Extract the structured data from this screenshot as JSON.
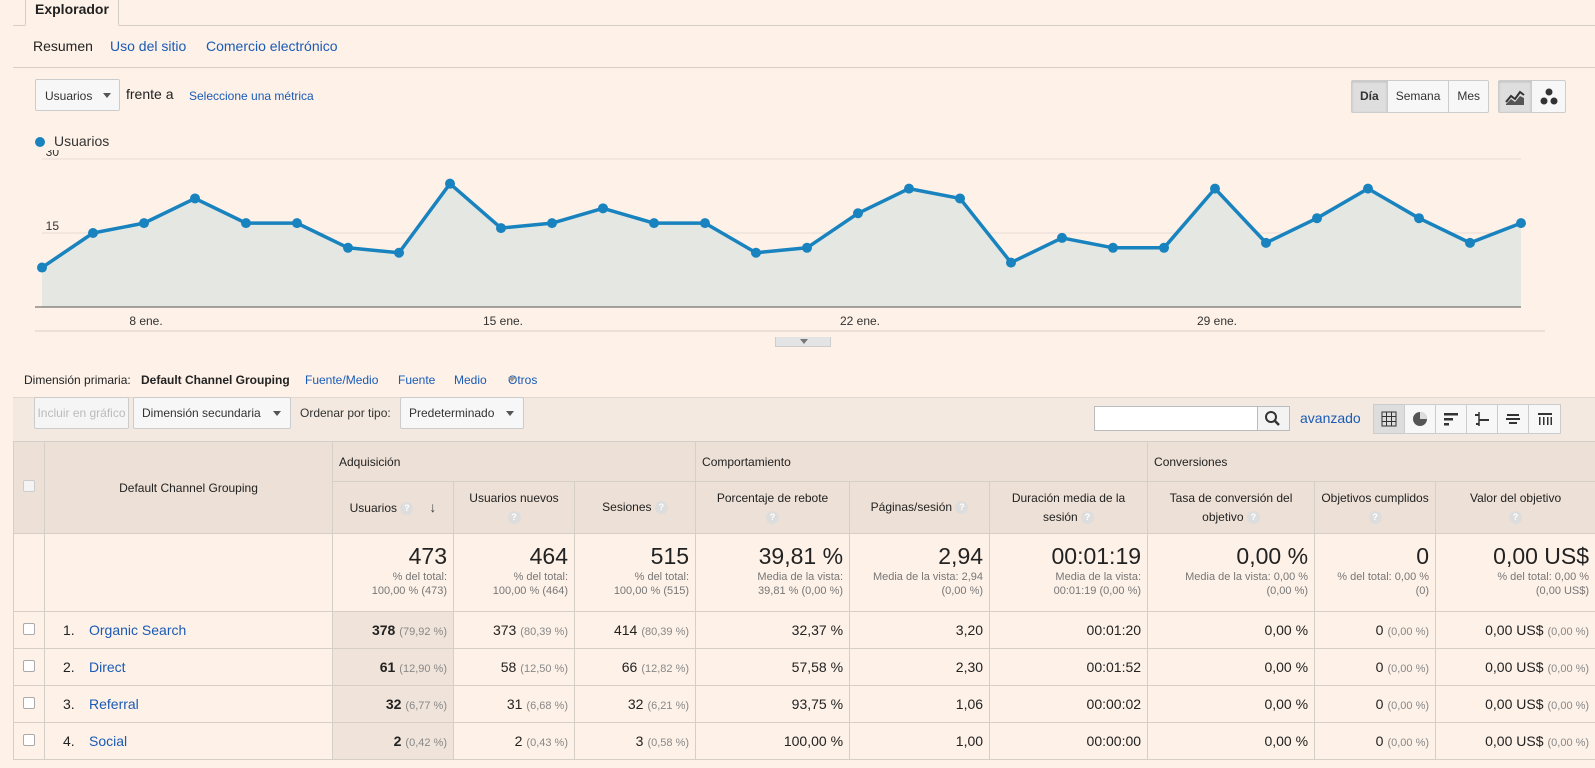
{
  "tabs": {
    "explorer": "Explorador"
  },
  "subtabs": [
    "Resumen",
    "Uso del sitio",
    "Comercio electrónico"
  ],
  "metric": {
    "selected": "Usuarios",
    "vs": "frente a",
    "select_metric": "Seleccione una métrica"
  },
  "period_buttons": [
    "Día",
    "Semana",
    "Mes"
  ],
  "chart_type_icons": [
    "line-chart-icon",
    "motion-chart-icon"
  ],
  "chart_data": {
    "type": "area",
    "series": [
      {
        "name": "Usuarios",
        "color": "#1883be",
        "values": [
          8,
          15,
          17,
          22,
          17,
          17,
          12,
          11,
          25,
          16,
          17,
          20,
          17,
          17,
          11,
          12,
          19,
          24,
          22,
          9,
          14,
          12,
          12,
          24,
          13,
          18,
          24,
          18,
          13,
          17
        ]
      }
    ],
    "x_ticks": [
      {
        "index": 2,
        "label": "8 ene."
      },
      {
        "index": 9,
        "label": "15 ene."
      },
      {
        "index": 16,
        "label": "22 ene."
      },
      {
        "index": 23,
        "label": "29 ene."
      }
    ],
    "y_ticks": [
      15,
      30
    ],
    "ylim": [
      0,
      30
    ],
    "legend": "top-left",
    "grid": true
  },
  "dimension": {
    "label": "Dimensión primaria:",
    "active": "Default Channel Grouping",
    "options": [
      "Fuente/Medio",
      "Fuente",
      "Medio",
      "Otros"
    ]
  },
  "toolbar": {
    "plot": "Incluir en gráfico",
    "secondary": "Dimensión secundaria",
    "sort_label": "Ordenar por tipo:",
    "sort_value": "Predeterminado",
    "advanced": "avanzado",
    "search_value": ""
  },
  "table": {
    "dim_header": "Default Channel Grouping",
    "groups": [
      "Adquisición",
      "Comportamiento",
      "Conversiones"
    ],
    "columns": [
      "Usuarios",
      "Usuarios nuevos",
      "Sesiones",
      "Porcentaje de rebote",
      "Páginas/sesión",
      "Duración media de la sesión",
      "Tasa de conversión del objetivo",
      "Objetivos cumplidos",
      "Valor del objetivo"
    ],
    "totals": [
      {
        "big": "473",
        "small1": "% del total:",
        "small2": "100,00 % (473)"
      },
      {
        "big": "464",
        "small1": "% del total:",
        "small2": "100,00 % (464)"
      },
      {
        "big": "515",
        "small1": "% del total:",
        "small2": "100,00 % (515)"
      },
      {
        "big": "39,81 %",
        "small1": "Media de la vista:",
        "small2": "39,81 % (0,00 %)"
      },
      {
        "big": "2,94",
        "small1": "Media de la vista: 2,94",
        "small2": "(0,00 %)"
      },
      {
        "big": "00:01:19",
        "small1": "Media de la vista:",
        "small2": "00:01:19 (0,00 %)"
      },
      {
        "big": "0,00 %",
        "small1": "Media de la vista: 0,00 %",
        "small2": "(0,00 %)"
      },
      {
        "big": "0",
        "small1": "% del total: 0,00 %",
        "small2": "(0)"
      },
      {
        "big": "0,00 US$",
        "small1": "% del total: 0,00 %",
        "small2": "(0,00 US$)"
      }
    ],
    "rows": [
      {
        "rank": "1.",
        "channel": "Organic Search",
        "users": "378",
        "users_pct": "(79,92 %)",
        "new_users": "373",
        "new_users_pct": "(80,39 %)",
        "sessions": "414",
        "sessions_pct": "(80,39 %)",
        "bounce": "32,37 %",
        "pages": "3,20",
        "duration": "00:01:20",
        "conv_rate": "0,00 %",
        "goals": "0",
        "goals_pct": "(0,00 %)",
        "value": "0,00 US$",
        "value_pct": "(0,00 %)"
      },
      {
        "rank": "2.",
        "channel": "Direct",
        "users": "61",
        "users_pct": "(12,90 %)",
        "new_users": "58",
        "new_users_pct": "(12,50 %)",
        "sessions": "66",
        "sessions_pct": "(12,82 %)",
        "bounce": "57,58 %",
        "pages": "2,30",
        "duration": "00:01:52",
        "conv_rate": "0,00 %",
        "goals": "0",
        "goals_pct": "(0,00 %)",
        "value": "0,00 US$",
        "value_pct": "(0,00 %)"
      },
      {
        "rank": "3.",
        "channel": "Referral",
        "users": "32",
        "users_pct": "(6,77 %)",
        "new_users": "31",
        "new_users_pct": "(6,68 %)",
        "sessions": "32",
        "sessions_pct": "(6,21 %)",
        "bounce": "93,75 %",
        "pages": "1,06",
        "duration": "00:00:02",
        "conv_rate": "0,00 %",
        "goals": "0",
        "goals_pct": "(0,00 %)",
        "value": "0,00 US$",
        "value_pct": "(0,00 %)"
      },
      {
        "rank": "4.",
        "channel": "Social",
        "users": "2",
        "users_pct": "(0,42 %)",
        "new_users": "2",
        "new_users_pct": "(0,43 %)",
        "sessions": "3",
        "sessions_pct": "(0,58 %)",
        "bounce": "100,00 %",
        "pages": "1,00",
        "duration": "00:00:00",
        "conv_rate": "0,00 %",
        "goals": "0",
        "goals_pct": "(0,00 %)",
        "value": "0,00 US$",
        "value_pct": "(0,00 %)"
      }
    ]
  }
}
